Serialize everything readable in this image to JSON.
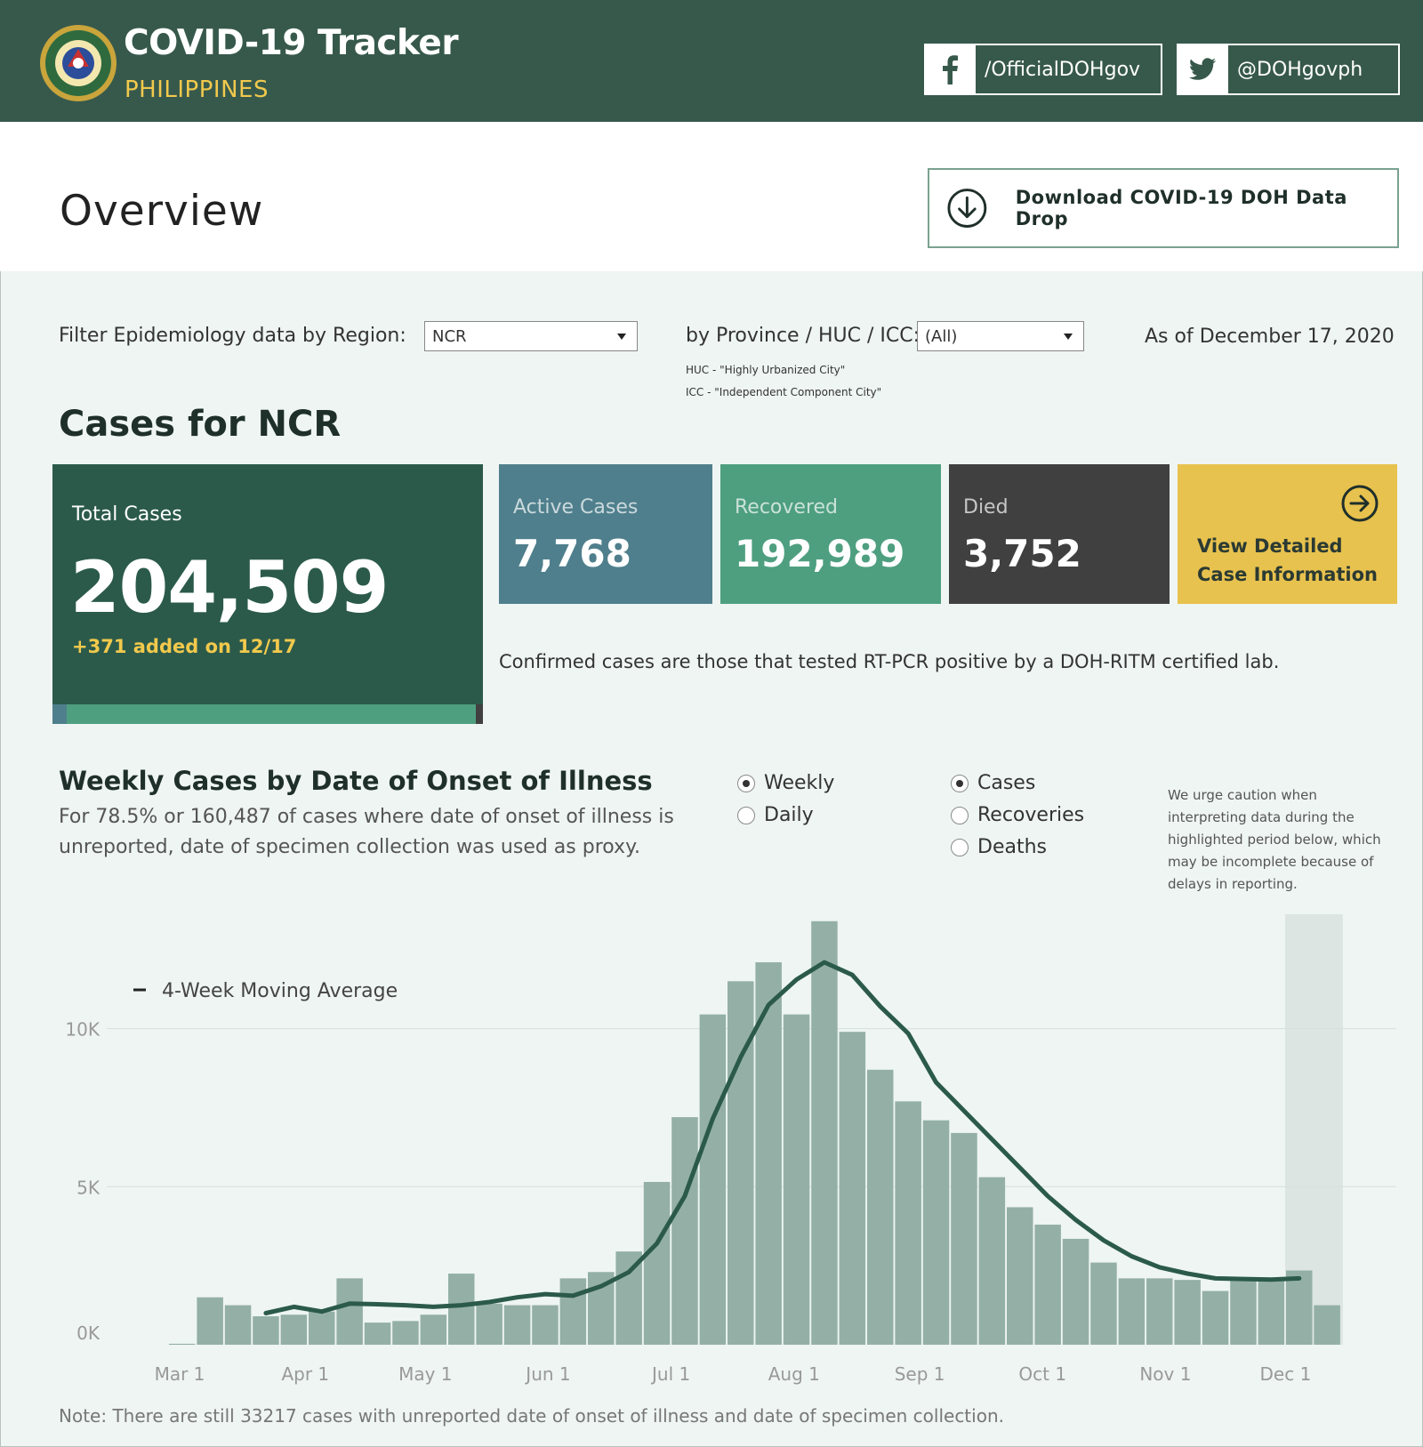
{
  "header": {
    "title": "COVID-19 Tracker",
    "subtitle": "PHILIPPINES",
    "facebook": "/OfficialDOHgov",
    "twitter": "@DOHgovph"
  },
  "overview": {
    "title": "Overview",
    "download_label": "Download COVID-19 DOH Data Drop"
  },
  "filters": {
    "region_label": "Filter Epidemiology data by Region:",
    "region_value": "NCR",
    "province_label": "by Province / HUC / ICC:",
    "province_value": "(All)",
    "huc_note": "HUC - \"Highly Urbanized City\"",
    "icc_note": "ICC - \"Independent Component City\"",
    "as_of": "As of December 17, 2020"
  },
  "cases": {
    "title": "Cases for NCR",
    "total_label": "Total Cases",
    "total_value": "204,509",
    "added": "+371 added on 12/17",
    "active_label": "Active Cases",
    "active_value": "7,768",
    "recovered_label": "Recovered",
    "recovered_value": "192,989",
    "died_label": "Died",
    "died_value": "3,752",
    "view_line1": "View Detailed",
    "view_line2": "Case Information",
    "confirmed_note": "Confirmed cases are those that tested RT-PCR positive by a DOH-RITM certified lab."
  },
  "weekly": {
    "title": "Weekly Cases by Date of Onset of Illness",
    "desc_line1": "For 78.5% or 160,487 of cases where date of onset of illness is",
    "desc_line2": "unreported, date of specimen collection was used as proxy.",
    "period_options": [
      "Weekly",
      "Daily"
    ],
    "period_selected": "Weekly",
    "metric_options": [
      "Cases",
      "Recoveries",
      "Deaths"
    ],
    "metric_selected": "Cases",
    "caution": "We urge caution when interpreting data during the highlighted period below, which may be incomplete because of delays in reporting.",
    "footnote": "Note: There are still 33217 cases with unreported date of onset of illness and date of specimen collection."
  },
  "colors": {
    "header_bg": "#37594c",
    "accent_yellow": "#f2c94c",
    "active": "#4f7f8c",
    "recovered": "#4e9f80",
    "died": "#404040",
    "bar": "#94b0a6",
    "line": "#2b5a4b"
  },
  "icons": {
    "seal": "doh-seal-icon",
    "facebook": "facebook-icon",
    "twitter": "twitter-icon",
    "download": "download-circle-icon",
    "view": "arrow-right-circle-icon"
  },
  "chart_data": {
    "type": "bar",
    "title": "Weekly Cases by Date of Onset of Illness",
    "xlabel": "",
    "ylabel": "",
    "ylim": [
      0,
      13000
    ],
    "y_ticks": [
      {
        "value": 0,
        "label": "0K"
      },
      {
        "value": 5000,
        "label": "5K"
      },
      {
        "value": 10000,
        "label": "10K"
      }
    ],
    "x_tick_labels": [
      {
        "label": "Mar 1",
        "index": 0
      },
      {
        "label": "Apr 1",
        "index": 4.5
      },
      {
        "label": "May 1",
        "index": 8.8
      },
      {
        "label": "Jun 1",
        "index": 13.2
      },
      {
        "label": "Jul 1",
        "index": 17.6
      },
      {
        "label": "Aug 1",
        "index": 22.0
      },
      {
        "label": "Sep 1",
        "index": 26.5
      },
      {
        "label": "Oct 1",
        "index": 30.9
      },
      {
        "label": "Nov 1",
        "index": 35.3
      },
      {
        "label": "Dec 1",
        "index": 39.6
      }
    ],
    "highlight_period_start_index": 40,
    "legend": "4-Week Moving Average",
    "series": [
      {
        "name": "Weekly Cases",
        "type": "bar",
        "values": [
          30,
          1500,
          1250,
          900,
          950,
          1050,
          2100,
          700,
          750,
          950,
          2250,
          1300,
          1250,
          1250,
          2100,
          2300,
          2950,
          5150,
          7200,
          10450,
          11500,
          12100,
          10450,
          13400,
          9900,
          8700,
          7700,
          7100,
          6700,
          5300,
          4350,
          3800,
          3350,
          2600,
          2100,
          2100,
          2050,
          1700,
          2050,
          2100,
          2350,
          1250
        ]
      },
      {
        "name": "4-Week Moving Average",
        "type": "line",
        "start_index": 3,
        "values": [
          1000,
          1200,
          1050,
          1300,
          1280,
          1250,
          1200,
          1250,
          1350,
          1500,
          1600,
          1550,
          1850,
          2300,
          3200,
          4700,
          7150,
          9100,
          10750,
          11550,
          12100,
          11700,
          10700,
          9850,
          8300,
          7400,
          6500,
          5600,
          4700,
          3950,
          3300,
          2800,
          2450,
          2250,
          2100,
          2080,
          2060,
          2100
        ]
      }
    ]
  }
}
